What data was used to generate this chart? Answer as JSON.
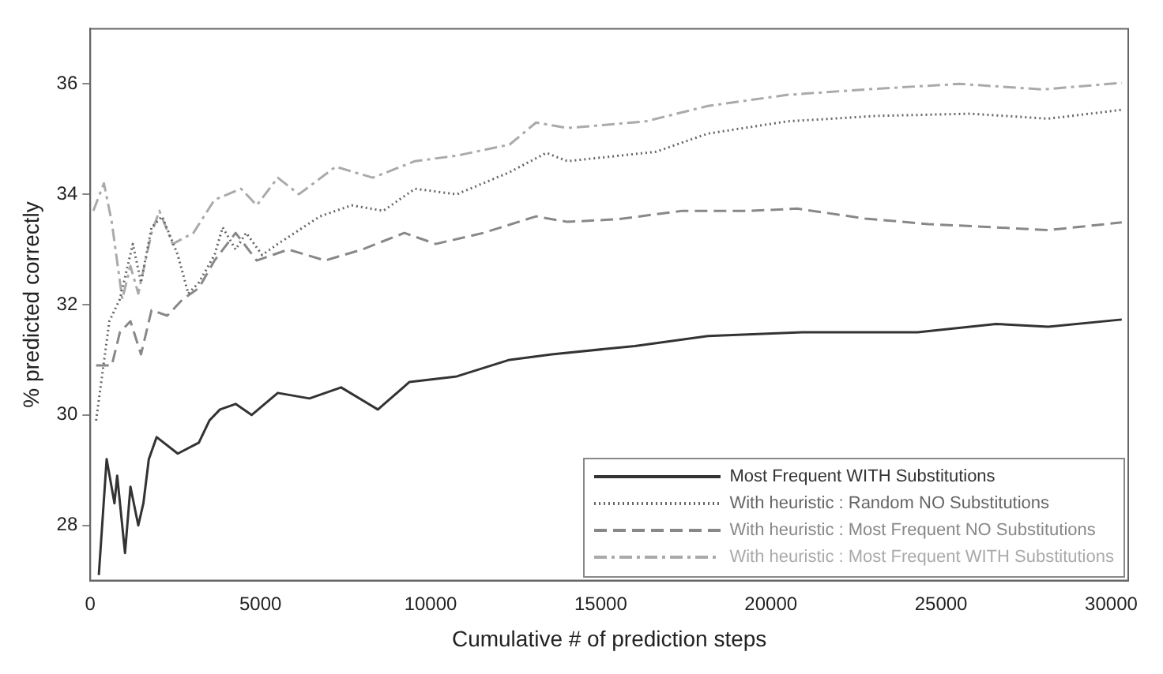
{
  "chart_data": {
    "type": "line",
    "xlabel": "Cumulative # of prediction steps",
    "ylabel": "% predicted correctly",
    "xlim": [
      0,
      30500
    ],
    "ylim": [
      27,
      37
    ],
    "xticks": [
      0,
      5000,
      10000,
      15000,
      20000,
      25000,
      30000
    ],
    "yticks": [
      28,
      30,
      32,
      34,
      36
    ],
    "grid": false,
    "legend": "bottom right",
    "marker": "none",
    "series": [
      {
        "name": "Most Frequent WITH Substitutions",
        "color": "#333333",
        "line_style": "solid",
        "x": [
          250,
          480,
          710,
          790,
          1020,
          1180,
          1410,
          1560,
          1720,
          1950,
          2570,
          3190,
          3500,
          3810,
          4270,
          4740,
          5510,
          6440,
          7370,
          8450,
          9380,
          10770,
          12320,
          13560,
          16000,
          18150,
          20920,
          24310,
          26620,
          28150,
          30310
        ],
        "values": [
          27.1,
          29.2,
          28.4,
          28.9,
          27.5,
          28.7,
          28.0,
          28.4,
          29.2,
          29.6,
          29.3,
          29.5,
          29.9,
          30.1,
          30.2,
          30.0,
          30.4,
          30.3,
          30.5,
          30.1,
          30.6,
          30.7,
          31.0,
          31.1,
          31.25,
          31.43,
          31.5,
          31.5,
          31.65,
          31.6,
          31.73
        ]
      },
      {
        "name": "With heuristic : Random NO Substitutions",
        "color": "#666666",
        "line_style": "dotted",
        "x": [
          170,
          560,
          870,
          1250,
          1490,
          1800,
          2110,
          2570,
          2880,
          3190,
          3650,
          3890,
          4270,
          4580,
          5050,
          5510,
          6750,
          7680,
          8610,
          9540,
          10770,
          12320,
          13400,
          14020,
          16620,
          18150,
          20460,
          23080,
          25850,
          28150,
          30310
        ],
        "values": [
          29.9,
          31.7,
          32.1,
          33.1,
          32.4,
          33.4,
          33.6,
          32.9,
          32.2,
          32.4,
          32.9,
          33.4,
          33.0,
          33.3,
          32.9,
          33.1,
          33.6,
          33.8,
          33.7,
          34.1,
          34.0,
          34.4,
          34.75,
          34.6,
          34.77,
          35.1,
          35.32,
          35.42,
          35.46,
          35.37,
          35.53
        ]
      },
      {
        "name": "With heuristic : Most Frequent NO Substitutions",
        "color": "#888888",
        "line_style": "dashed",
        "x": [
          170,
          630,
          870,
          1180,
          1490,
          1800,
          2260,
          2720,
          3190,
          3650,
          4270,
          4890,
          5820,
          6900,
          7990,
          9230,
          10150,
          11550,
          13100,
          14020,
          15540,
          17390,
          19380,
          20770,
          22770,
          24620,
          26620,
          28150,
          30310
        ],
        "values": [
          30.9,
          30.9,
          31.5,
          31.7,
          31.1,
          31.9,
          31.8,
          32.1,
          32.3,
          32.8,
          33.3,
          32.8,
          33.0,
          32.8,
          33.0,
          33.3,
          33.1,
          33.3,
          33.6,
          33.5,
          33.55,
          33.7,
          33.7,
          33.74,
          33.56,
          33.46,
          33.4,
          33.35,
          33.49
        ]
      },
      {
        "name": "With heuristic : Most Frequent WITH Substitutions",
        "color": "#aaaaaa",
        "line_style": "dashdot",
        "x": [
          90,
          400,
          630,
          940,
          1180,
          1410,
          1800,
          2030,
          2420,
          3030,
          3650,
          4430,
          4890,
          5510,
          6130,
          7210,
          8300,
          9540,
          10770,
          12320,
          13100,
          14020,
          16310,
          18150,
          20460,
          22770,
          25540,
          28000,
          30310
        ],
        "values": [
          33.7,
          34.2,
          33.5,
          32.1,
          32.7,
          32.2,
          33.3,
          33.7,
          33.1,
          33.3,
          33.9,
          34.1,
          33.8,
          34.3,
          34.0,
          34.5,
          34.3,
          34.6,
          34.7,
          34.9,
          35.3,
          35.2,
          35.32,
          35.6,
          35.8,
          35.9,
          36.0,
          35.9,
          36.02
        ]
      }
    ]
  }
}
